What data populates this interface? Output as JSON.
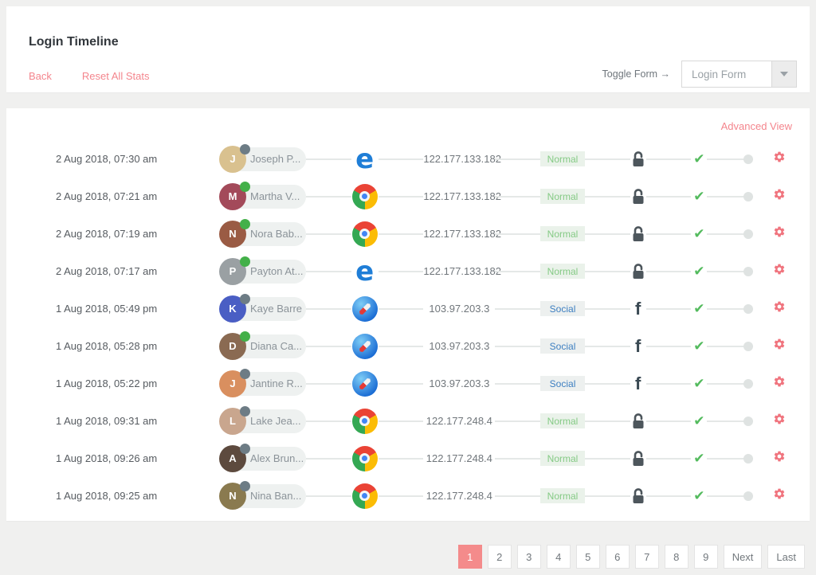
{
  "header": {
    "title": "Login Timeline",
    "back_label": "Back",
    "reset_label": "Reset All Stats",
    "toggle_form_label": "Toggle Form →",
    "form_select_value": "Login Form"
  },
  "timeline": {
    "advanced_view_label": "Advanced View",
    "rows": [
      {
        "time": "2 Aug 2018, 07:30 am",
        "name": "Joseph P...",
        "initial": "J",
        "avatar_color": "#d9c18f",
        "status": "offline",
        "browser": "edge",
        "ip": "122.177.133.182",
        "badge": "Normal",
        "badge_type": "normal",
        "auth": "lock",
        "check": "✔"
      },
      {
        "time": "2 Aug 2018, 07:21 am",
        "name": "Martha V...",
        "initial": "M",
        "avatar_color": "#a34a5a",
        "status": "online",
        "browser": "chrome",
        "ip": "122.177.133.182",
        "badge": "Normal",
        "badge_type": "normal",
        "auth": "lock",
        "check": "✔"
      },
      {
        "time": "2 Aug 2018, 07:19 am",
        "name": "Nora Bab...",
        "initial": "N",
        "avatar_color": "#9a5b44",
        "status": "online",
        "browser": "chrome",
        "ip": "122.177.133.182",
        "badge": "Normal",
        "badge_type": "normal",
        "auth": "lock",
        "check": "✔"
      },
      {
        "time": "2 Aug 2018, 07:17 am",
        "name": "Payton At...",
        "initial": "P",
        "avatar_color": "#9aa0a3",
        "status": "online",
        "browser": "edge",
        "ip": "122.177.133.182",
        "badge": "Normal",
        "badge_type": "normal",
        "auth": "lock",
        "check": "✔"
      },
      {
        "time": "1 Aug 2018, 05:49 pm",
        "name": "Kaye Barre",
        "initial": "K",
        "avatar_color": "#4a5ec4",
        "status": "offline",
        "browser": "safari",
        "ip": "103.97.203.3",
        "badge": "Social",
        "badge_type": "social",
        "auth": "facebook",
        "check": "✔"
      },
      {
        "time": "1 Aug 2018, 05:28 pm",
        "name": "Diana Ca...",
        "initial": "D",
        "avatar_color": "#8a6a52",
        "status": "online",
        "browser": "safari",
        "ip": "103.97.203.3",
        "badge": "Social",
        "badge_type": "social",
        "auth": "facebook",
        "check": "✔"
      },
      {
        "time": "1 Aug 2018, 05:22 pm",
        "name": "Jantine R...",
        "initial": "J",
        "avatar_color": "#d98f5f",
        "status": "offline",
        "browser": "safari",
        "ip": "103.97.203.3",
        "badge": "Social",
        "badge_type": "social",
        "auth": "facebook",
        "check": "✔"
      },
      {
        "time": "1 Aug 2018, 09:31 am",
        "name": "Lake Jea...",
        "initial": "L",
        "avatar_color": "#c9a68e",
        "status": "offline",
        "browser": "chrome",
        "ip": "122.177.248.4",
        "badge": "Normal",
        "badge_type": "normal",
        "auth": "lock",
        "check": "✔"
      },
      {
        "time": "1 Aug 2018, 09:26 am",
        "name": "Alex Brun...",
        "initial": "A",
        "avatar_color": "#5d4a3e",
        "status": "offline",
        "browser": "chrome",
        "ip": "122.177.248.4",
        "badge": "Normal",
        "badge_type": "normal",
        "auth": "lock",
        "check": "✔"
      },
      {
        "time": "1 Aug 2018, 09:25 am",
        "name": "Nina Ban...",
        "initial": "N",
        "avatar_color": "#8a7a4f",
        "status": "offline",
        "browser": "chrome",
        "ip": "122.177.248.4",
        "badge": "Normal",
        "badge_type": "normal",
        "auth": "lock",
        "check": "✔"
      }
    ]
  },
  "pagination": {
    "pages": [
      "1",
      "2",
      "3",
      "4",
      "5",
      "6",
      "7",
      "8",
      "9"
    ],
    "active_page": "1",
    "next_label": "Next",
    "last_label": "Last"
  },
  "colors": {
    "accent_salmon": "#f4858d",
    "active_page_bg": "#f48b8b",
    "success_green": "#54bb5e",
    "online_dot": "#43b049",
    "offline_dot": "#6d7c85",
    "badge_normal_text": "#85ca85",
    "badge_social_text": "#3d7fc1",
    "edge_blue": "#1f7ed7"
  }
}
